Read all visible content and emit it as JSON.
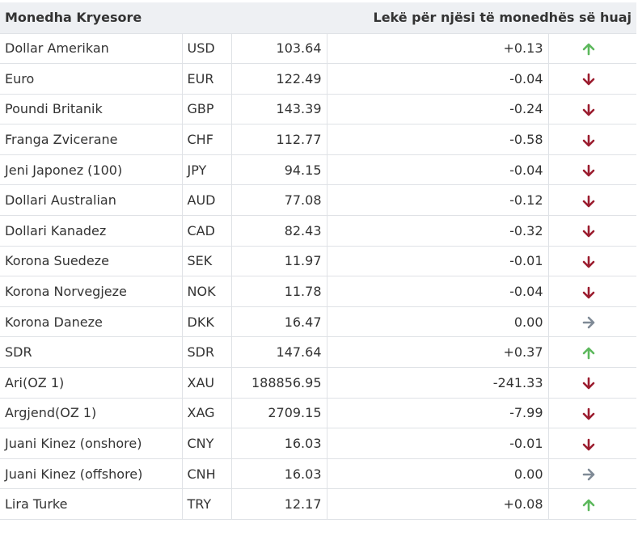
{
  "table": {
    "header": {
      "currency": "Monedha Kryesore",
      "unit": "Lekë për njësi të monedhës së huaj"
    },
    "colors": {
      "up": "#5cb85c",
      "down": "#9b1c2e",
      "flat": "#7f8a96"
    },
    "rows": [
      {
        "name": "Dollar Amerikan",
        "code": "USD",
        "value": "103.64",
        "change": "+0.13",
        "trend": "up"
      },
      {
        "name": "Euro",
        "code": "EUR",
        "value": "122.49",
        "change": "-0.04",
        "trend": "down"
      },
      {
        "name": "Poundi Britanik",
        "code": "GBP",
        "value": "143.39",
        "change": "-0.24",
        "trend": "down"
      },
      {
        "name": "Franga Zvicerane",
        "code": "CHF",
        "value": "112.77",
        "change": "-0.58",
        "trend": "down"
      },
      {
        "name": "Jeni Japonez (100)",
        "code": "JPY",
        "value": "94.15",
        "change": "-0.04",
        "trend": "down"
      },
      {
        "name": "Dollari Australian",
        "code": "AUD",
        "value": "77.08",
        "change": "-0.12",
        "trend": "down"
      },
      {
        "name": "Dollari Kanadez",
        "code": "CAD",
        "value": "82.43",
        "change": "-0.32",
        "trend": "down"
      },
      {
        "name": "Korona Suedeze",
        "code": "SEK",
        "value": "11.97",
        "change": "-0.01",
        "trend": "down"
      },
      {
        "name": "Korona Norvegjeze",
        "code": "NOK",
        "value": "11.78",
        "change": "-0.04",
        "trend": "down"
      },
      {
        "name": "Korona Daneze",
        "code": "DKK",
        "value": "16.47",
        "change": "0.00",
        "trend": "flat"
      },
      {
        "name": "SDR",
        "code": "SDR",
        "value": "147.64",
        "change": "+0.37",
        "trend": "up"
      },
      {
        "name": "Ari(OZ 1)",
        "code": "XAU",
        "value": "188856.95",
        "change": "-241.33",
        "trend": "down"
      },
      {
        "name": "Argjend(OZ 1)",
        "code": "XAG",
        "value": "2709.15",
        "change": "-7.99",
        "trend": "down"
      },
      {
        "name": "Juani Kinez (onshore)",
        "code": "CNY",
        "value": "16.03",
        "change": "-0.01",
        "trend": "down"
      },
      {
        "name": "Juani Kinez (offshore)",
        "code": "CNH",
        "value": "16.03",
        "change": "0.00",
        "trend": "flat"
      },
      {
        "name": "Lira Turke",
        "code": "TRY",
        "value": "12.17",
        "change": "+0.08",
        "trend": "up"
      }
    ]
  }
}
